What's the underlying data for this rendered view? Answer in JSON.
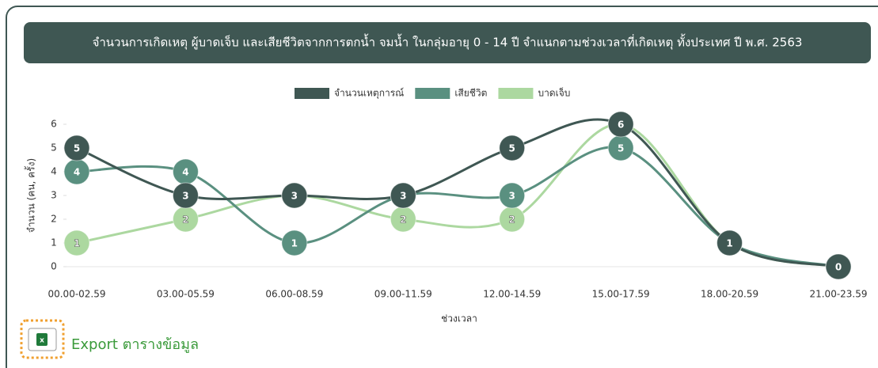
{
  "chart_data": {
    "type": "line",
    "title": "จำนวนการเกิดเหตุ ผู้บาดเจ็บ และเสียชีวิตจากการตกน้ำ จมน้ำ ในกลุ่มอายุ 0 - 14 ปี จำแนกตามช่วงเวลาที่เกิดเหตุ ทั้งประเทศ ปี พ.ศ. 2563",
    "x_label": "ช่วงเวลา",
    "y_label": "จำนวน (คน, ครั้ง)",
    "categories": [
      "00.00-02.59",
      "03.00-05.59",
      "06.00-08.59",
      "09.00-11.59",
      "12.00-14.59",
      "15.00-17.59",
      "18.00-20.59",
      "21.00-23.59"
    ],
    "series": [
      {
        "name": "จำนวนเหตุการณ์",
        "color": "#3f5753",
        "values": [
          5,
          3,
          3,
          3,
          5,
          6,
          1,
          0
        ]
      },
      {
        "name": "เสียชีวิต",
        "color": "#5a9080",
        "values": [
          4,
          4,
          1,
          3,
          3,
          5,
          1,
          0
        ]
      },
      {
        "name": "บาดเจ็บ",
        "color": "#acd8a0",
        "values": [
          1,
          2,
          3,
          2,
          2,
          6,
          1,
          0
        ]
      }
    ],
    "ylim": [
      0,
      6
    ],
    "yticks": [
      0,
      1,
      2,
      3,
      4,
      5,
      6
    ],
    "legend": "top"
  },
  "export_button": "Export ตารางข้อมูล"
}
